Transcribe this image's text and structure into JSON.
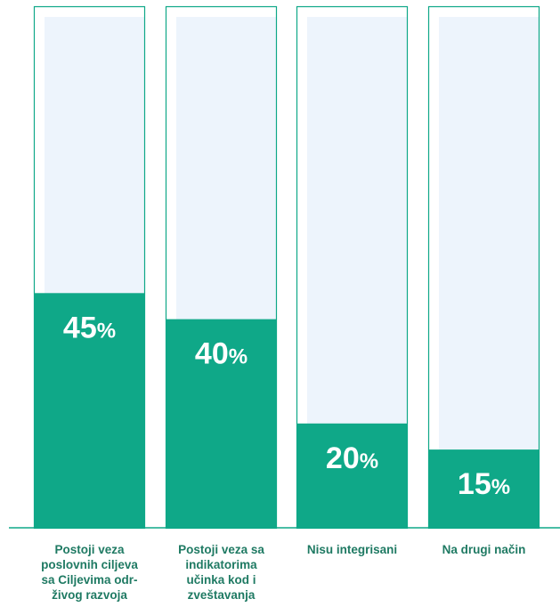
{
  "chart_data": {
    "type": "bar",
    "categories": [
      "Postoji veza poslovnih ciljeva sa Ciljevima odr-živog razvoja",
      "Postoji veza sa indikatorima učinka kod i zveštavanja",
      "Nisu integrisani",
      "Na drugi način"
    ],
    "category_lines": [
      [
        "Postoji veza",
        "poslovnih ciljeva",
        "sa Ciljevima odr-",
        "živog razvoja"
      ],
      [
        "Postoji veza sa",
        "indikatorima",
        "učinka kod i",
        "zveštavanja"
      ],
      [
        "Nisu integrisani"
      ],
      [
        "Na drugi način"
      ]
    ],
    "values": [
      45,
      40,
      20,
      15
    ],
    "value_labels": [
      "45",
      "40",
      "20",
      "15"
    ],
    "value_suffix": "%",
    "ylim": [
      0,
      100
    ],
    "grid": false,
    "legend": "none",
    "title": "",
    "xlabel": "",
    "ylabel": ""
  },
  "colors": {
    "bar_fill": "#0fa888",
    "bar_outline": "#0fa888",
    "bar_background": "#edf4fc",
    "label_text": "#1f7a63",
    "value_text": "#ffffff",
    "baseline": "#0fa888"
  }
}
